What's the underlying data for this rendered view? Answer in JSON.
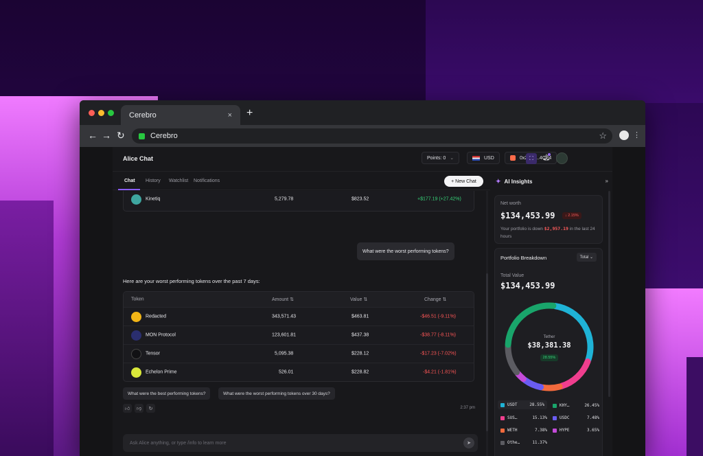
{
  "browser": {
    "tab_title": "Cerebro",
    "tab_close": "×",
    "new_tab": "+",
    "url": "Cerebro",
    "back": "←",
    "forward": "→",
    "reload": "↻",
    "star": "☆",
    "menu": "⋮"
  },
  "header": {
    "title": "Alice Chat",
    "points": "Points: 0",
    "points_caret": "⌄",
    "currency": "USD",
    "wallet": "0x240a...4CE4"
  },
  "tabs": [
    "Chat",
    "History",
    "Watchlist",
    "Notifications"
  ],
  "new_chat": "+ New Chat",
  "insights": {
    "title": "AI Insights",
    "collapse": "»"
  },
  "prev_table": {
    "rows": [
      {
        "token": "Kinetiq",
        "amount": "5,279.78",
        "value": "$823.52",
        "change": "+$177.19 (+27.42%)",
        "icon_color": "#3ea6a0"
      }
    ]
  },
  "user_message": "What were the worst performing tokens?",
  "ai_response": "Here are your worst performing tokens over the past 7 days:",
  "worst_table": {
    "headers": {
      "token": "Token",
      "amount": "Amount ⇅",
      "value": "Value ⇅",
      "change": "Change ⇅"
    },
    "rows": [
      {
        "token": "Redacted",
        "amount": "343,571.43",
        "value": "$463.81",
        "change": "-$46.51 (-9.11%)",
        "icon_color": "#f2b516"
      },
      {
        "token": "MON Protocol",
        "amount": "123,601.81",
        "value": "$437.38",
        "change": "-$38.77 (-8.11%)",
        "icon_color": "#2a2e6e"
      },
      {
        "token": "Tensor",
        "amount": "5,095.38",
        "value": "$228.12",
        "change": "-$17.23 (-7.02%)",
        "icon_color": "#111114"
      },
      {
        "token": "Echelon Prime",
        "amount": "526.01",
        "value": "$228.82",
        "change": "-$4.21 (-1.81%)",
        "icon_color": "#d9e83a"
      }
    ]
  },
  "suggestions": [
    "What were the best performing tokens?",
    "What were the worst performing tokens over 30 days?"
  ],
  "timestamp": "2:37 pm",
  "input": {
    "placeholder": "Ask Alice anything, or type /info to learn more"
  },
  "net_worth": {
    "label": "Net worth",
    "value": "$134,453.99",
    "change": "↓ 2.15%",
    "desc_prefix": "Your portfolio is down",
    "desc_amount": "$2,957.19",
    "desc_suffix": "in the last 24 hours"
  },
  "portfolio": {
    "title": "Portfolio Breakdown",
    "filter": "Total ⌄",
    "total_label": "Total Value",
    "total_value": "$134,453.99",
    "center_label": "Tether",
    "center_value": "$38,381.38",
    "center_pct": "28.55%",
    "segments": [
      {
        "name": "USDT",
        "pct": 28.55,
        "color": "#1fb3d6"
      },
      {
        "name": "SUS…",
        "pct": 15.13,
        "color": "#f03e8e"
      },
      {
        "name": "WETH",
        "pct": 7.38,
        "color": "#f26a3d"
      },
      {
        "name": "USDC",
        "pct": 7.48,
        "color": "#6a5cf2"
      },
      {
        "name": "HYPE",
        "pct": 3.65,
        "color": "#c44bd9"
      },
      {
        "name": "Othe…",
        "pct": 11.37,
        "color": "#5c5c62"
      },
      {
        "name": "KHY…",
        "pct": 26.45,
        "color": "#19a56b"
      }
    ],
    "legend": [
      {
        "name": "USDT",
        "pct": "28.55%",
        "color": "#1fb3d6"
      },
      {
        "name": "KHY…",
        "pct": "26.45%",
        "color": "#19a56b"
      },
      {
        "name": "SUS…",
        "pct": "15.13%",
        "color": "#f03e8e"
      },
      {
        "name": "USDC",
        "pct": "7.48%",
        "color": "#6a5cf2"
      },
      {
        "name": "WETH",
        "pct": "7.38%",
        "color": "#f26a3d"
      },
      {
        "name": "HYPE",
        "pct": "3.65%",
        "color": "#c44bd9"
      },
      {
        "name": "Othe…",
        "pct": "11.37%",
        "color": "#5c5c62"
      }
    ]
  }
}
